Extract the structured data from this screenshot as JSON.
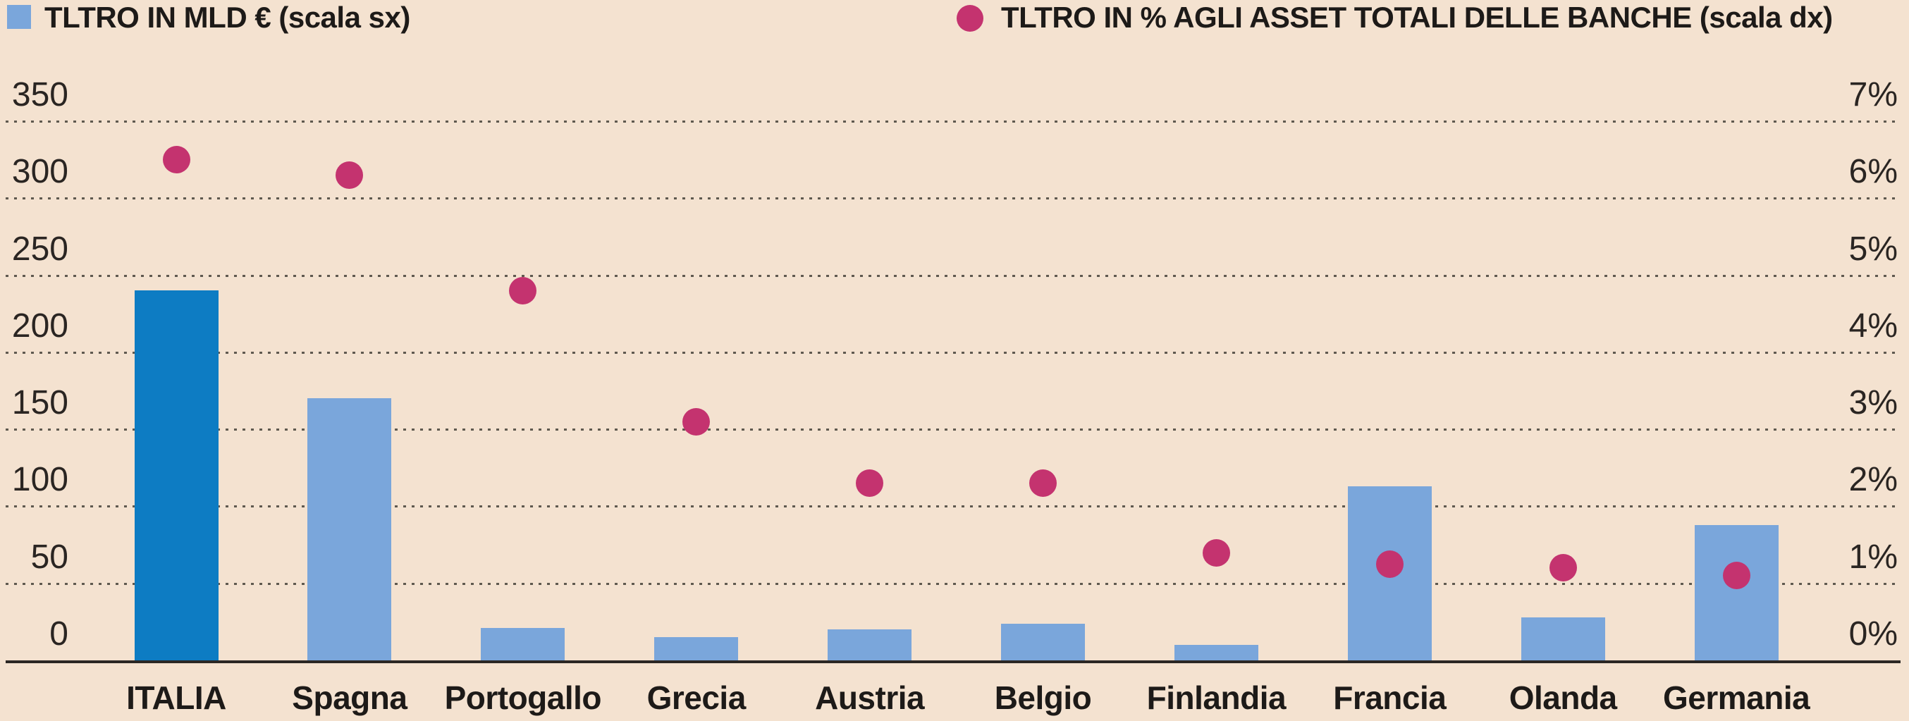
{
  "legend": {
    "bars_label": "TLTRO IN MLD € (scala sx)",
    "dots_label": "TLTRO IN % AGLI ASSET TOTALI DELLE BANCHE (scala dx)"
  },
  "colors": {
    "background": "#f4e2d0",
    "bar_default": "#7aa6db",
    "bar_highlight": "#0d7cc3",
    "dot": "#c4336f",
    "text": "#1d1a18",
    "axis_text": "#2a2522",
    "gridline": "#5f594f",
    "axis_line": "#2b2724"
  },
  "chart_data": {
    "type": "bar",
    "subtype": "dual-axis bar + scatter",
    "categories": [
      "ITALIA",
      "Spagna",
      "Portogallo",
      "Grecia",
      "Austria",
      "Belgio",
      "Finlandia",
      "Francia",
      "Olanda",
      "Germania"
    ],
    "series": [
      {
        "name": "TLTRO IN MLD € (scala sx)",
        "type": "bar",
        "axis": "left",
        "values": [
          240,
          170,
          21,
          15,
          20,
          24,
          10,
          113,
          28,
          88
        ]
      },
      {
        "name": "TLTRO IN % AGLI ASSET TOTALI DELLE BANCHE (scala dx)",
        "type": "scatter",
        "axis": "right",
        "values": [
          6.5,
          6.3,
          4.8,
          3.1,
          2.3,
          2.3,
          1.4,
          1.25,
          1.2,
          1.1
        ]
      }
    ],
    "left_axis": {
      "min": 0,
      "max": 350,
      "tick_labels": [
        "350",
        "300",
        "250",
        "200",
        "150",
        "100",
        "50",
        "0"
      ]
    },
    "right_axis": {
      "min": 0,
      "max": 7,
      "tick_labels": [
        "7%",
        "6%",
        "5%",
        "4%",
        "3%",
        "2%",
        "1%",
        "0%"
      ]
    },
    "highlight_category": "ITALIA",
    "grid": "dotted horizontal lines at every 50 / 1%",
    "legend_position": "top"
  }
}
